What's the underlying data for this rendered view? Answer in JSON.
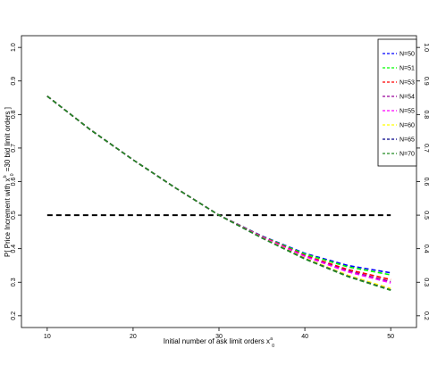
{
  "chart_data": {
    "type": "line",
    "xlabel": "Initial number of ask limit orders  x",
    "xlabel_sup": "a",
    "xlabel_sub": "0",
    "ylabel_pre": "P[ Price Increment with  x",
    "ylabel_sup": "b",
    "ylabel_sub": "0",
    "ylabel_post": "=30 bid limit orders ]",
    "xlim": [
      7,
      53
    ],
    "ylim": [
      0.165,
      1.035
    ],
    "xticks": [
      10,
      20,
      30,
      40,
      50
    ],
    "yticks": [
      0.2,
      0.3,
      0.4,
      0.5,
      0.6,
      0.7,
      0.8,
      0.9,
      1.0
    ],
    "ytick_labels": [
      "0.2",
      "0.3",
      "0.4",
      "0.5",
      "0.6",
      "0.7",
      "0.8",
      "0.9",
      "1.0"
    ],
    "legend_position": "top-right",
    "line_style": "dashed",
    "reference_line": {
      "y": 0.5,
      "x_range": [
        10,
        50
      ],
      "color": "#000000"
    },
    "x": [
      10,
      15,
      20,
      25,
      30,
      35,
      40,
      45,
      50
    ],
    "series": [
      {
        "name": "N=50",
        "color": "#0000ff",
        "values": [
          0.855,
          0.755,
          0.665,
          0.58,
          0.5,
          0.438,
          0.386,
          0.35,
          0.328
        ]
      },
      {
        "name": "N=51",
        "color": "#00ff00",
        "values": [
          0.855,
          0.755,
          0.665,
          0.58,
          0.5,
          0.437,
          0.384,
          0.346,
          0.322
        ]
      },
      {
        "name": "N=53",
        "color": "#ff0000",
        "values": [
          0.855,
          0.755,
          0.665,
          0.58,
          0.5,
          0.436,
          0.38,
          0.338,
          0.308
        ]
      },
      {
        "name": "N=54",
        "color": "#990099",
        "values": [
          0.855,
          0.755,
          0.665,
          0.58,
          0.5,
          0.435,
          0.378,
          0.334,
          0.302
        ]
      },
      {
        "name": "N=55",
        "color": "#ff00ff",
        "values": [
          0.855,
          0.755,
          0.665,
          0.58,
          0.5,
          0.435,
          0.377,
          0.331,
          0.298
        ]
      },
      {
        "name": "N=60",
        "color": "#ffff00",
        "values": [
          0.855,
          0.755,
          0.665,
          0.58,
          0.5,
          0.433,
          0.372,
          0.321,
          0.281
        ]
      },
      {
        "name": "N=65",
        "color": "#000088",
        "values": [
          0.855,
          0.755,
          0.665,
          0.58,
          0.5,
          0.432,
          0.37,
          0.318,
          0.277
        ]
      },
      {
        "name": "N=70",
        "color": "#228b22",
        "values": [
          0.855,
          0.755,
          0.665,
          0.58,
          0.5,
          0.432,
          0.369,
          0.317,
          0.276
        ]
      }
    ]
  }
}
